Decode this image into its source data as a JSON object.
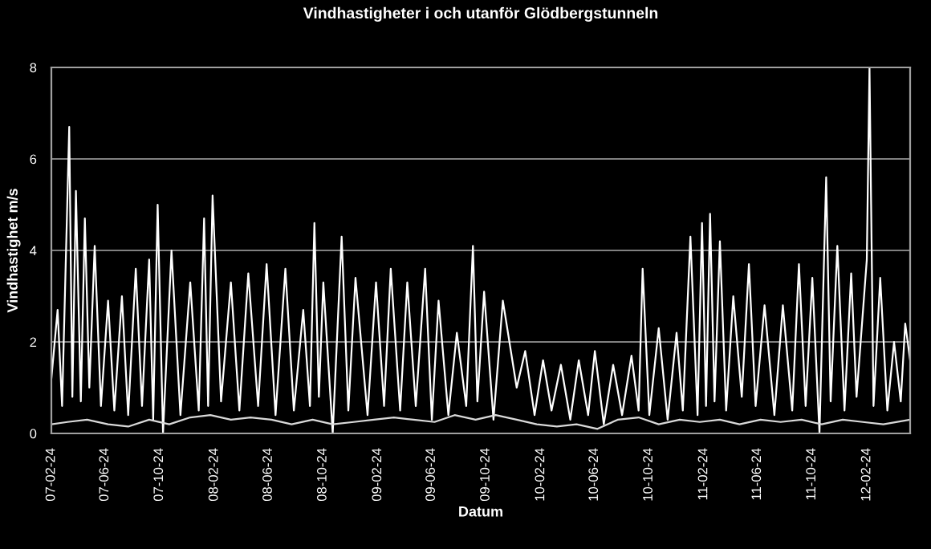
{
  "chart_data": {
    "type": "line",
    "title": "Vindhastigheter i och utanför Glödbergstunneln",
    "xlabel": "Datum",
    "ylabel": "Vindhastighet m/s",
    "xlim": [
      "2007-02-24",
      "2012-05-31"
    ],
    "ylim": [
      0,
      8
    ],
    "yticks": [
      0,
      2,
      4,
      6,
      8
    ],
    "xticks": [
      {
        "value": "2007-02-24",
        "label": "07-02-24"
      },
      {
        "value": "2007-06-24",
        "label": "07-06-24"
      },
      {
        "value": "2007-10-24",
        "label": "07-10-24"
      },
      {
        "value": "2008-02-24",
        "label": "08-02-24"
      },
      {
        "value": "2008-06-24",
        "label": "08-06-24"
      },
      {
        "value": "2008-10-24",
        "label": "08-10-24"
      },
      {
        "value": "2009-02-24",
        "label": "09-02-24"
      },
      {
        "value": "2009-06-24",
        "label": "09-06-24"
      },
      {
        "value": "2009-10-24",
        "label": "09-10-24"
      },
      {
        "value": "2010-02-24",
        "label": "10-02-24"
      },
      {
        "value": "2010-06-24",
        "label": "10-06-24"
      },
      {
        "value": "2010-10-24",
        "label": "10-10-24"
      },
      {
        "value": "2011-02-24",
        "label": "11-02-24"
      },
      {
        "value": "2011-06-24",
        "label": "11-06-24"
      },
      {
        "value": "2011-10-24",
        "label": "11-10-24"
      },
      {
        "value": "2012-02-24",
        "label": "12-02-24"
      }
    ],
    "grid": "y",
    "legend": false,
    "series": [
      {
        "color": "#ffffff",
        "x": [
          "2007-02-24",
          "2007-03-10",
          "2007-03-20",
          "2007-04-05",
          "2007-04-12",
          "2007-04-20",
          "2007-05-01",
          "2007-05-10",
          "2007-05-20",
          "2007-06-01",
          "2007-06-15",
          "2007-07-01",
          "2007-07-15",
          "2007-08-01",
          "2007-08-15",
          "2007-09-01",
          "2007-09-15",
          "2007-10-01",
          "2007-10-10",
          "2007-10-20",
          "2007-11-01",
          "2007-11-20",
          "2007-12-10",
          "2008-01-01",
          "2008-01-20",
          "2008-02-01",
          "2008-02-10",
          "2008-02-20",
          "2008-03-10",
          "2008-04-01",
          "2008-04-20",
          "2008-05-10",
          "2008-06-01",
          "2008-06-20",
          "2008-07-10",
          "2008-08-01",
          "2008-08-20",
          "2008-09-10",
          "2008-09-25",
          "2008-10-05",
          "2008-10-15",
          "2008-10-25",
          "2008-11-15",
          "2008-12-05",
          "2008-12-20",
          "2009-01-05",
          "2009-02-01",
          "2009-02-20",
          "2009-03-10",
          "2009-03-25",
          "2009-04-15",
          "2009-05-01",
          "2009-05-20",
          "2009-06-10",
          "2009-06-25",
          "2009-07-10",
          "2009-08-01",
          "2009-08-20",
          "2009-09-10",
          "2009-09-25",
          "2009-10-05",
          "2009-10-20",
          "2009-11-10",
          "2009-12-01",
          "2010-01-01",
          "2010-01-20",
          "2010-02-10",
          "2010-03-01",
          "2010-03-20",
          "2010-04-10",
          "2010-05-01",
          "2010-05-20",
          "2010-06-10",
          "2010-06-25",
          "2010-07-15",
          "2010-08-05",
          "2010-08-25",
          "2010-09-15",
          "2010-10-01",
          "2010-10-10",
          "2010-10-25",
          "2010-11-15",
          "2010-12-05",
          "2010-12-25",
          "2011-01-08",
          "2011-01-25",
          "2011-02-10",
          "2011-02-20",
          "2011-03-01",
          "2011-03-10",
          "2011-03-20",
          "2011-04-01",
          "2011-04-15",
          "2011-05-01",
          "2011-05-20",
          "2011-06-05",
          "2011-06-20",
          "2011-07-10",
          "2011-08-01",
          "2011-08-20",
          "2011-09-10",
          "2011-09-25",
          "2011-10-10",
          "2011-10-25",
          "2011-11-10",
          "2011-11-25",
          "2011-12-05",
          "2011-12-20",
          "2012-01-05",
          "2012-01-20",
          "2012-02-01",
          "2012-02-24",
          "2012-03-01",
          "2012-03-10",
          "2012-03-25",
          "2012-04-10",
          "2012-04-25",
          "2012-05-10",
          "2012-05-20",
          "2012-05-31"
        ],
        "values": [
          1.2,
          2.7,
          0.6,
          6.7,
          0.8,
          5.3,
          0.7,
          4.7,
          1.0,
          4.1,
          0.6,
          2.9,
          0.5,
          3.0,
          0.4,
          3.6,
          0.6,
          3.8,
          0.3,
          5.0,
          0,
          4.0,
          0.4,
          3.3,
          0.5,
          4.7,
          0.6,
          5.2,
          0.7,
          3.3,
          0.5,
          3.5,
          0.6,
          3.7,
          0.4,
          3.6,
          0.5,
          2.7,
          0.6,
          4.6,
          0.8,
          3.3,
          0,
          4.3,
          0.5,
          3.4,
          0.4,
          3.3,
          0.6,
          3.6,
          0.5,
          3.3,
          0.6,
          3.6,
          0.3,
          2.9,
          0.4,
          2.2,
          0.6,
          4.1,
          0.7,
          3.1,
          0.3,
          2.9,
          1.0,
          1.8,
          0.4,
          1.6,
          0.5,
          1.5,
          0.3,
          1.6,
          0.4,
          1.8,
          0.2,
          1.5,
          0.4,
          1.7,
          0.5,
          3.6,
          0.4,
          2.3,
          0.3,
          2.2,
          0.5,
          4.3,
          0.4,
          4.6,
          0.6,
          4.8,
          0.7,
          4.2,
          0.5,
          3.0,
          0.8,
          3.7,
          0.6,
          2.8,
          0.4,
          2.8,
          0.5,
          3.7,
          0.6,
          3.4,
          0,
          5.6,
          0.7,
          4.1,
          0.5,
          3.5,
          0.8,
          3.8,
          8.0,
          0.6,
          3.4,
          0.5,
          2.0,
          0.7,
          2.4,
          1.6
        ]
      },
      {
        "color": "#d9d9d9",
        "x": [
          "2007-02-24",
          "2007-04-01",
          "2007-05-15",
          "2007-07-01",
          "2007-08-15",
          "2007-10-01",
          "2007-11-15",
          "2008-01-01",
          "2008-02-15",
          "2008-04-01",
          "2008-05-15",
          "2008-07-01",
          "2008-08-15",
          "2008-10-01",
          "2008-11-15",
          "2009-01-01",
          "2009-02-15",
          "2009-04-01",
          "2009-05-15",
          "2009-07-01",
          "2009-08-15",
          "2009-10-01",
          "2009-11-15",
          "2010-01-01",
          "2010-02-15",
          "2010-04-01",
          "2010-05-15",
          "2010-07-01",
          "2010-08-15",
          "2010-10-01",
          "2010-11-15",
          "2011-01-01",
          "2011-02-15",
          "2011-04-01",
          "2011-05-15",
          "2011-07-01",
          "2011-08-15",
          "2011-10-01",
          "2011-11-15",
          "2012-01-01",
          "2012-02-15",
          "2012-04-01",
          "2012-05-31"
        ],
        "values": [
          0.2,
          0.25,
          0.3,
          0.2,
          0.15,
          0.3,
          0.2,
          0.35,
          0.4,
          0.3,
          0.35,
          0.3,
          0.2,
          0.3,
          0.2,
          0.25,
          0.3,
          0.35,
          0.3,
          0.25,
          0.4,
          0.3,
          0.4,
          0.3,
          0.2,
          0.15,
          0.2,
          0.1,
          0.3,
          0.35,
          0.2,
          0.3,
          0.25,
          0.3,
          0.2,
          0.3,
          0.25,
          0.3,
          0.2,
          0.3,
          0.25,
          0.2,
          0.3
        ]
      }
    ]
  }
}
